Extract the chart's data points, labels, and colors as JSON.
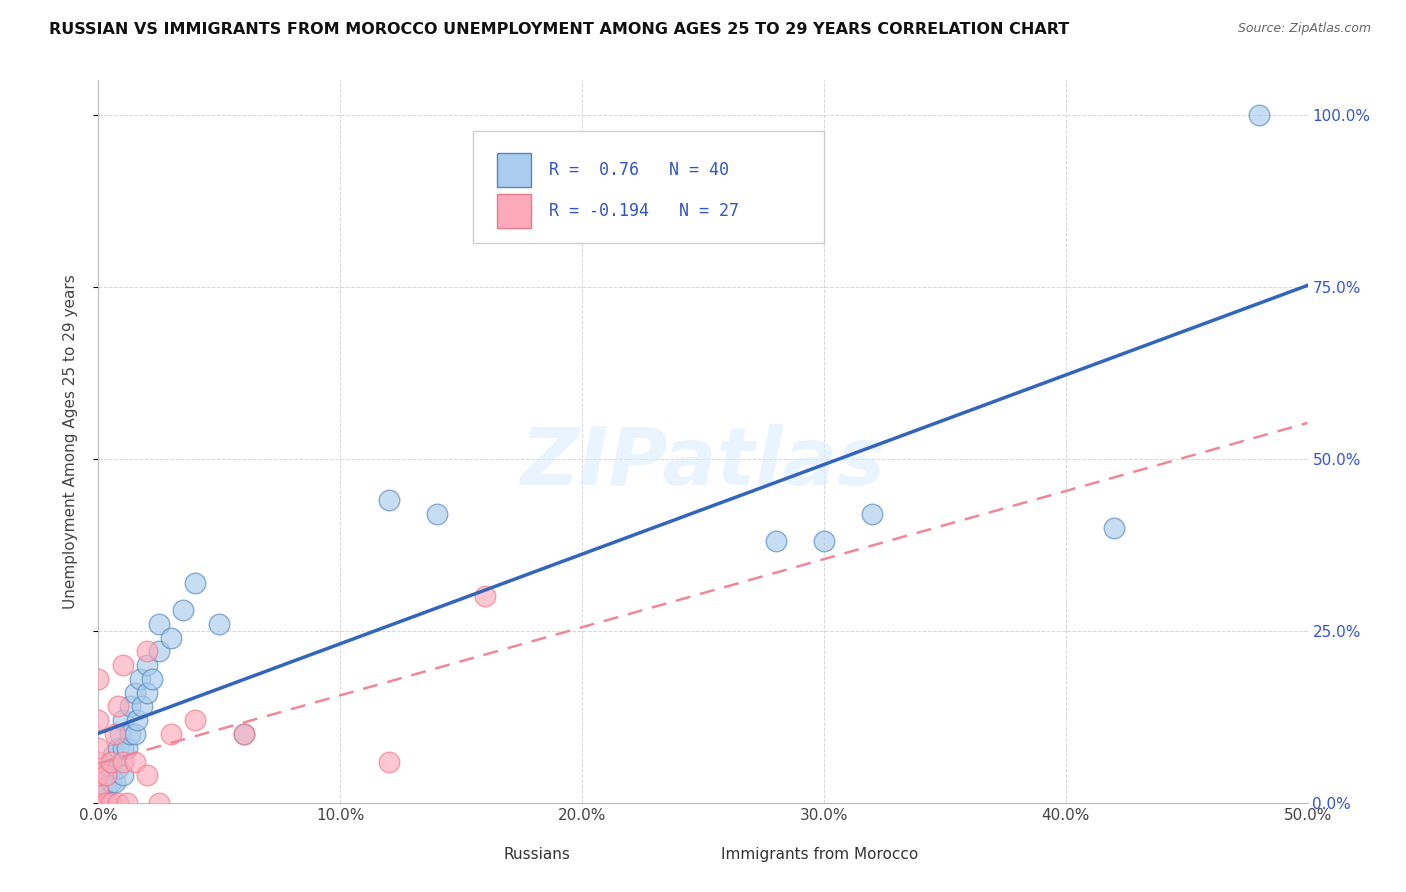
{
  "title": "RUSSIAN VS IMMIGRANTS FROM MOROCCO UNEMPLOYMENT AMONG AGES 25 TO 29 YEARS CORRELATION CHART",
  "source": "Source: ZipAtlas.com",
  "xlabel_ticks": [
    "0.0%",
    "10.0%",
    "20.0%",
    "30.0%",
    "40.0%",
    "50.0%"
  ],
  "ylabel_label": "Unemployment Among Ages 25 to 29 years",
  "right_ytick_vals": [
    0.0,
    0.25,
    0.5,
    0.75,
    1.0
  ],
  "right_ytick_labels": [
    "0.0%",
    "25.0%",
    "50.0%",
    "75.0%",
    "100.0%"
  ],
  "xlim": [
    0.0,
    0.5
  ],
  "ylim": [
    0.0,
    1.05
  ],
  "r_russian": 0.76,
  "n_russian": 40,
  "r_morocco": -0.194,
  "n_morocco": 27,
  "legend_labels": [
    "Russians",
    "Immigrants from Morocco"
  ],
  "blue_fill": "#AACCEE",
  "blue_edge": "#5588BB",
  "pink_fill": "#FFAABB",
  "pink_edge": "#EE7788",
  "trend_blue": "#3366BB",
  "trend_pink": "#EE8899",
  "legend_r_color": "#3355CC",
  "watermark": "ZIPatlas",
  "russians_x": [
    0.0,
    0.0,
    0.0,
    0.003,
    0.003,
    0.005,
    0.005,
    0.006,
    0.007,
    0.008,
    0.008,
    0.009,
    0.01,
    0.01,
    0.01,
    0.012,
    0.013,
    0.013,
    0.015,
    0.015,
    0.016,
    0.017,
    0.018,
    0.02,
    0.02,
    0.022,
    0.025,
    0.025,
    0.03,
    0.035,
    0.04,
    0.05,
    0.06,
    0.12,
    0.14,
    0.28,
    0.3,
    0.32,
    0.42,
    0.48
  ],
  "russians_y": [
    0.0,
    0.02,
    0.04,
    0.0,
    0.02,
    0.03,
    0.05,
    0.07,
    0.03,
    0.05,
    0.08,
    0.1,
    0.04,
    0.08,
    0.12,
    0.08,
    0.1,
    0.14,
    0.1,
    0.16,
    0.12,
    0.18,
    0.14,
    0.16,
    0.2,
    0.18,
    0.22,
    0.26,
    0.24,
    0.28,
    0.32,
    0.26,
    0.1,
    0.44,
    0.42,
    0.38,
    0.38,
    0.42,
    0.4,
    1.0
  ],
  "morocco_x": [
    0.0,
    0.0,
    0.0,
    0.0,
    0.0,
    0.0,
    0.0,
    0.0,
    0.003,
    0.003,
    0.005,
    0.005,
    0.007,
    0.008,
    0.008,
    0.01,
    0.01,
    0.012,
    0.015,
    0.02,
    0.02,
    0.025,
    0.03,
    0.04,
    0.06,
    0.12,
    0.16
  ],
  "morocco_y": [
    0.0,
    0.0,
    0.02,
    0.04,
    0.06,
    0.08,
    0.12,
    0.18,
    0.0,
    0.04,
    0.0,
    0.06,
    0.1,
    0.0,
    0.14,
    0.06,
    0.2,
    0.0,
    0.06,
    0.04,
    0.22,
    0.0,
    0.1,
    0.12,
    0.1,
    0.06,
    0.3
  ]
}
